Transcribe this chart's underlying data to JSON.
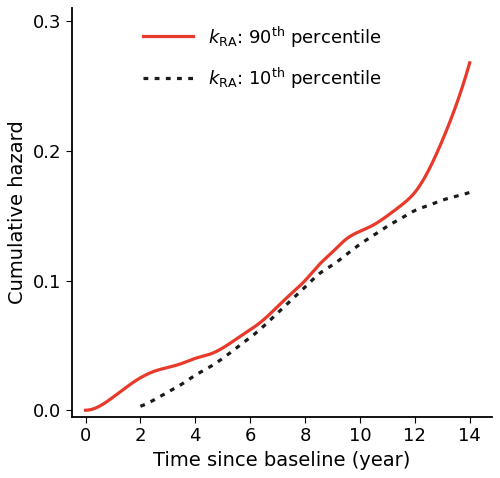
{
  "title": "",
  "xlabel": "Time since baseline (year)",
  "ylabel": "Cumulative hazard",
  "xlim": [
    -0.5,
    14.8
  ],
  "ylim": [
    -0.005,
    0.31
  ],
  "xticks": [
    0,
    2,
    4,
    6,
    8,
    10,
    12,
    14
  ],
  "yticks": [
    0.0,
    0.1,
    0.2,
    0.3
  ],
  "high_color": "#E8392A",
  "low_color": "#1a1a1a",
  "high_label": "$k_{\\mathrm{RA}}$: 90$^{\\mathrm{th}}$ percentile",
  "low_label": "$k_{\\mathrm{RA}}$: 10$^{\\mathrm{th}}$ percentile",
  "high_x": [
    0.0,
    0.5,
    1.0,
    1.5,
    2.0,
    2.5,
    3.0,
    3.5,
    4.0,
    4.5,
    5.0,
    5.5,
    6.0,
    6.5,
    7.0,
    7.5,
    8.0,
    8.5,
    9.0,
    9.5,
    10.0,
    10.5,
    11.0,
    11.5,
    12.0,
    12.5,
    13.0,
    13.5,
    14.0
  ],
  "high_y": [
    0.0,
    0.003,
    0.01,
    0.018,
    0.025,
    0.03,
    0.033,
    0.036,
    0.04,
    0.043,
    0.048,
    0.055,
    0.062,
    0.07,
    0.08,
    0.09,
    0.1,
    0.112,
    0.122,
    0.132,
    0.138,
    0.143,
    0.15,
    0.158,
    0.168,
    0.185,
    0.208,
    0.235,
    0.268
  ],
  "low_x": [
    2.0,
    2.5,
    3.0,
    3.5,
    4.0,
    4.5,
    5.0,
    5.5,
    6.0,
    6.5,
    7.0,
    7.5,
    8.0,
    8.5,
    9.0,
    9.5,
    10.0,
    10.5,
    11.0,
    11.5,
    12.0,
    12.5,
    13.0,
    13.5,
    14.0
  ],
  "low_y": [
    0.003,
    0.008,
    0.014,
    0.02,
    0.027,
    0.033,
    0.04,
    0.048,
    0.056,
    0.065,
    0.075,
    0.085,
    0.095,
    0.105,
    0.112,
    0.12,
    0.128,
    0.135,
    0.142,
    0.148,
    0.154,
    0.158,
    0.162,
    0.165,
    0.168
  ],
  "background_color": "#ffffff",
  "xlabel_fontsize": 14,
  "ylabel_fontsize": 14,
  "tick_fontsize": 13,
  "legend_fontsize": 13,
  "linewidth_high": 2.3,
  "linewidth_low": 2.3,
  "figsize": [
    5.0,
    4.78
  ],
  "dpi": 100
}
